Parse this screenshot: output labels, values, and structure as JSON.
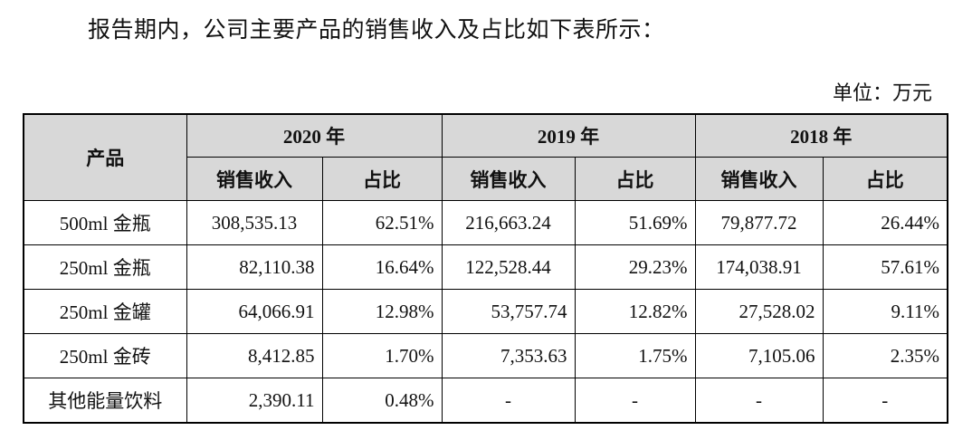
{
  "intro_text": "报告期内，公司主要产品的销售收入及占比如下表所示：",
  "unit_label": "单位：万元",
  "table": {
    "product_header": "产品",
    "years": [
      "2020 年",
      "2019 年",
      "2018 年"
    ],
    "sub_headers": {
      "revenue": "销售收入",
      "share": "占比"
    },
    "rows": [
      {
        "product": "500ml 金瓶",
        "cells": [
          "308,535.13",
          "62.51%",
          "216,663.24",
          "51.69%",
          "79,877.72",
          "26.44%"
        ]
      },
      {
        "product": "250ml 金瓶",
        "cells": [
          "82,110.38",
          "16.64%",
          "122,528.44",
          "29.23%",
          "174,038.91",
          "57.61%"
        ]
      },
      {
        "product": "250ml 金罐",
        "cells": [
          "64,066.91",
          "12.98%",
          "53,757.74",
          "12.82%",
          "27,528.02",
          "9.11%"
        ]
      },
      {
        "product": "250ml 金砖",
        "cells": [
          "8,412.85",
          "1.70%",
          "7,353.63",
          "1.75%",
          "7,105.06",
          "2.35%"
        ]
      },
      {
        "product": "其他能量饮料",
        "cells": [
          "2,390.11",
          "0.48%",
          "-",
          "-",
          "-",
          "-"
        ]
      }
    ]
  }
}
